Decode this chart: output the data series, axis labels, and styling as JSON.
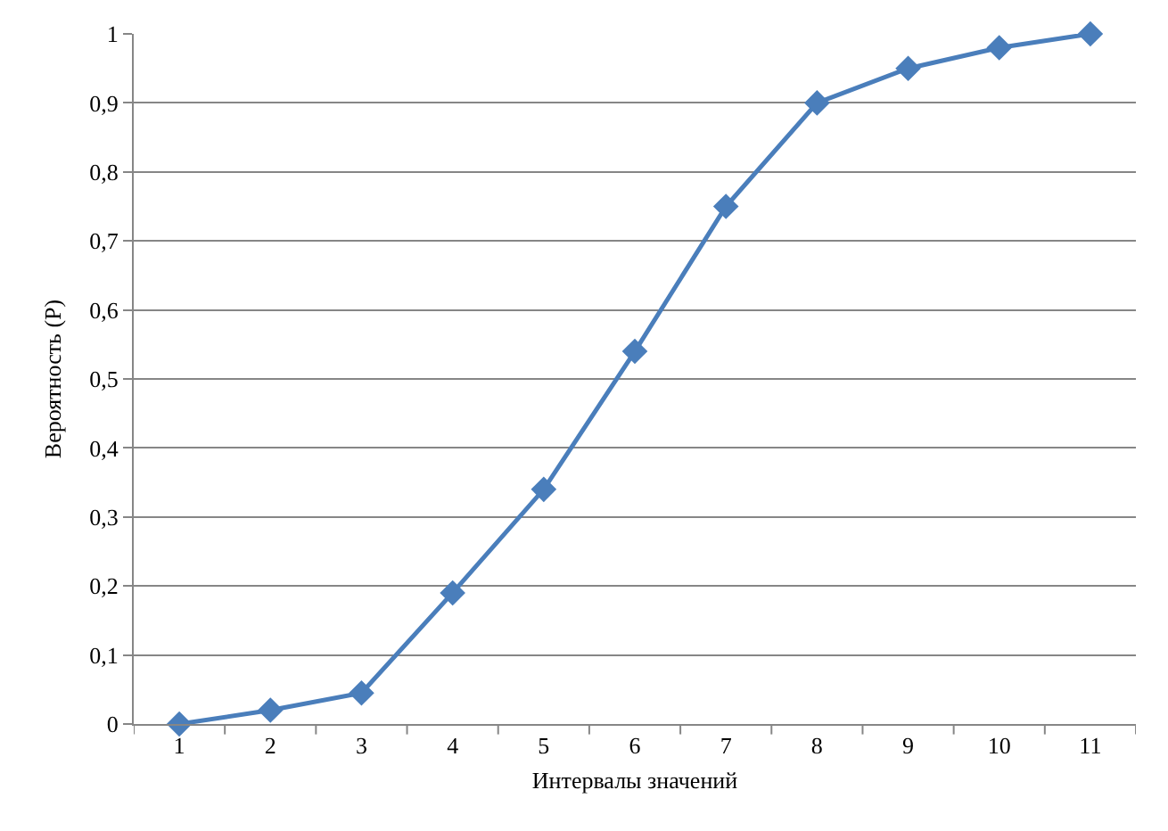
{
  "chart_data": {
    "type": "line",
    "xlabel": "Интервалы значений",
    "ylabel": "Вероятность (P)",
    "categories": [
      "1",
      "2",
      "3",
      "4",
      "5",
      "6",
      "7",
      "8",
      "9",
      "10",
      "11"
    ],
    "series": [
      {
        "color": "#4a7ebb",
        "values": [
          0,
          0.02,
          0.045,
          0.19,
          0.34,
          0.54,
          0.75,
          0.9,
          0.95,
          0.98,
          1
        ]
      }
    ],
    "ylim": [
      0,
      1
    ],
    "yticks": [
      0,
      {
        "value": 0.1,
        "label": "0,1"
      },
      {
        "value": 0.2,
        "label": "0,2"
      },
      {
        "value": 0.3,
        "label": "0,3"
      },
      {
        "value": 0.4,
        "label": "0,4"
      },
      {
        "value": 0.5,
        "label": "0,5"
      },
      {
        "value": 0.6,
        "label": "0,6"
      },
      {
        "value": 0.7,
        "label": "0,7"
      },
      {
        "value": 0.8,
        "label": "0,8"
      },
      {
        "value": 0.9,
        "label": "0,9"
      },
      1
    ],
    "grid": "y",
    "marker": "diamond",
    "line_style": "solid"
  }
}
